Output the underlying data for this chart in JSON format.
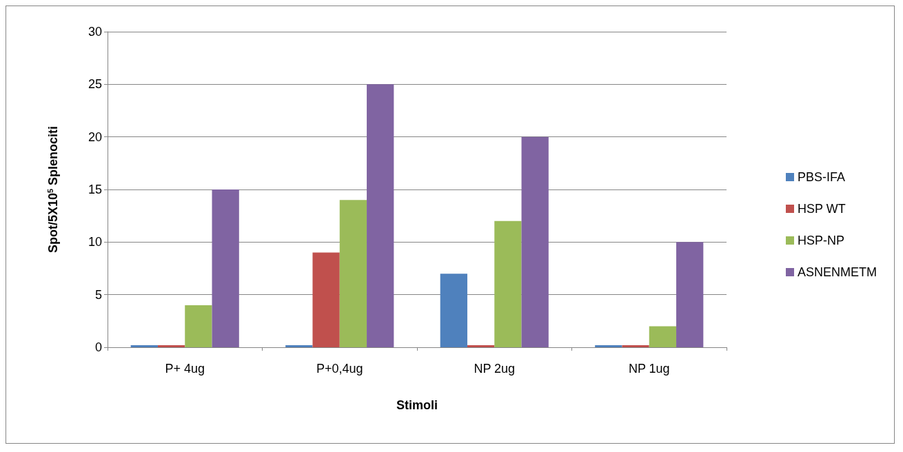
{
  "chart_data": {
    "type": "bar",
    "xlabel": "Stimoli",
    "ylabel": "Spot/5X10$^{5}$ Splenociti",
    "categories": [
      "P+ 4ug",
      "P+0,4ug",
      "NP 2ug",
      "NP 1ug"
    ],
    "series": [
      {
        "name": "PBS-IFA",
        "color": "#4f81bd",
        "values": [
          0.2,
          0.2,
          7,
          0.2
        ]
      },
      {
        "name": "HSP WT",
        "color": "#c0504d",
        "values": [
          0.2,
          9,
          0.2,
          0.2
        ]
      },
      {
        "name": "HSP-NP",
        "color": "#9bbb59",
        "values": [
          4,
          14,
          12,
          2
        ]
      },
      {
        "name": "ASNENMETM",
        "color": "#8064a2",
        "values": [
          15,
          25,
          20,
          10
        ]
      }
    ],
    "ylim": [
      0,
      30
    ],
    "yticks": [
      0,
      5,
      10,
      15,
      20,
      25,
      30
    ],
    "grid": "y",
    "legend": "right"
  }
}
